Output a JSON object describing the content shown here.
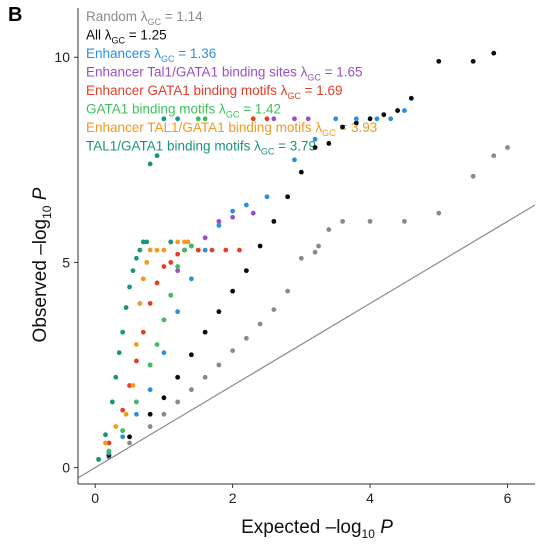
{
  "panel_label": "B",
  "chart_data": {
    "type": "scatter",
    "subtype": "qq-plot",
    "xlabel": "Expected –log10 P",
    "xlabel_parts": {
      "main": "Expected –log",
      "sub": "10",
      "italic": "P"
    },
    "ylabel": "Observed –log10 P",
    "ylabel_parts": {
      "main": "Observed –log",
      "sub": "10",
      "italic": "P"
    },
    "xlim": [
      -0.25,
      6.4
    ],
    "ylim": [
      -0.4,
      11.2
    ],
    "x_ticks": [
      0,
      2,
      4,
      6
    ],
    "y_ticks": [
      0,
      5,
      10
    ],
    "grid": false,
    "legend_placement": "top-left",
    "reference_line": {
      "from": [
        -0.25,
        -0.25
      ],
      "to": [
        6.4,
        6.4
      ],
      "color": "#8c8c8c"
    },
    "series": [
      {
        "name": "Random",
        "lambda": "1.14",
        "color": "#8a8a8a",
        "x": [
          0.2,
          0.5,
          0.8,
          1.0,
          1.2,
          1.4,
          1.6,
          1.8,
          2.0,
          2.2,
          2.4,
          2.6,
          2.8,
          3.0,
          3.2,
          3.25,
          3.4,
          3.6,
          4.0,
          4.5,
          5.0,
          5.5,
          5.8,
          6.0
        ],
        "y": [
          0.25,
          0.6,
          1.0,
          1.3,
          1.6,
          1.9,
          2.2,
          2.5,
          2.85,
          3.15,
          3.5,
          3.85,
          4.3,
          5.1,
          5.25,
          5.4,
          5.8,
          6.0,
          6.0,
          6.0,
          6.2,
          7.1,
          7.6,
          7.8
        ]
      },
      {
        "name": "All",
        "lambda": "1.25",
        "color": "#0a0a0a",
        "x": [
          0.2,
          0.5,
          0.8,
          1.0,
          1.2,
          1.4,
          1.6,
          1.8,
          2.0,
          2.2,
          2.4,
          2.6,
          2.8,
          3.0,
          3.2,
          3.4,
          3.6,
          3.8,
          4.0,
          4.2,
          4.4,
          4.6,
          5.0,
          5.5,
          5.8
        ],
        "y": [
          0.3,
          0.75,
          1.3,
          1.7,
          2.2,
          2.75,
          3.3,
          3.8,
          4.3,
          4.8,
          5.4,
          6.0,
          6.6,
          7.2,
          7.8,
          7.9,
          8.3,
          8.4,
          8.5,
          8.6,
          8.7,
          9.0,
          9.9,
          9.9,
          10.1
        ]
      },
      {
        "name": "Enhancers",
        "lambda": "1.36",
        "color": "#2e8fe0",
        "x": [
          0.2,
          0.4,
          0.6,
          0.8,
          1.0,
          1.2,
          1.4,
          1.6,
          1.8,
          2.0,
          2.2,
          2.5,
          2.9,
          3.2,
          3.5,
          3.8,
          4.1,
          4.3,
          4.5
        ],
        "y": [
          0.35,
          0.75,
          1.3,
          1.9,
          2.8,
          3.8,
          4.6,
          5.3,
          5.9,
          6.25,
          6.4,
          6.6,
          7.5,
          8.0,
          8.5,
          8.5,
          8.5,
          8.5,
          8.7
        ]
      },
      {
        "name": "Enhancer Tal1/GATA1 binding sites",
        "lambda": "1.65",
        "color": "#9b4fc4",
        "x": [
          0.2,
          0.4,
          0.6,
          0.8,
          1.0,
          1.1,
          1.2,
          1.3,
          1.4,
          1.6,
          1.8,
          2.0,
          2.3,
          2.6,
          2.9,
          3.1
        ],
        "y": [
          0.4,
          0.9,
          1.6,
          2.5,
          3.6,
          4.2,
          4.8,
          5.3,
          5.4,
          5.6,
          6.0,
          6.1,
          6.2,
          8.5,
          8.5,
          8.5
        ]
      },
      {
        "name": "Enhancer GATA1 binding motifs",
        "lambda": "1.69",
        "color": "#e0402a",
        "x": [
          0.2,
          0.4,
          0.5,
          0.6,
          0.7,
          0.8,
          0.9,
          1.0,
          1.1,
          1.2,
          1.3,
          1.5,
          1.7,
          1.9,
          2.1,
          2.3,
          2.5
        ],
        "y": [
          0.6,
          1.4,
          2.0,
          2.6,
          3.3,
          4.0,
          4.5,
          4.9,
          5.0,
          5.2,
          5.3,
          5.3,
          5.3,
          5.3,
          5.3,
          8.5,
          8.5
        ]
      },
      {
        "name": "GATA1 binding motifs",
        "lambda": "1.42",
        "color": "#3fbf5a",
        "x": [
          0.2,
          0.4,
          0.6,
          0.8,
          0.9,
          1.0,
          1.1,
          1.2,
          1.3,
          1.4,
          1.5,
          1.6
        ],
        "y": [
          0.4,
          0.9,
          1.6,
          2.5,
          3.0,
          3.6,
          4.2,
          4.9,
          5.3,
          5.4,
          8.5,
          8.5
        ]
      },
      {
        "name": "Enhancer TAL1/GATA1 binding motifs",
        "lambda": "3.93",
        "color": "#f19a1e",
        "x": [
          0.05,
          0.15,
          0.3,
          0.45,
          0.55,
          0.6,
          0.65,
          0.7,
          0.75,
          0.8,
          0.9,
          1.0,
          1.1,
          1.2,
          1.3,
          1.35
        ],
        "y": [
          0.2,
          0.6,
          1.0,
          1.3,
          2.0,
          3.0,
          4.0,
          4.6,
          5.0,
          5.3,
          5.3,
          5.3,
          5.5,
          5.5,
          5.5,
          5.5
        ]
      },
      {
        "name": "TAL1/GATA1 binding motifs",
        "lambda": "3.79",
        "color": "#17967a",
        "x": [
          0.05,
          0.15,
          0.25,
          0.3,
          0.35,
          0.4,
          0.45,
          0.5,
          0.55,
          0.6,
          0.65,
          0.7,
          0.75,
          0.8,
          0.9,
          1.0,
          1.1,
          1.2
        ],
        "y": [
          0.2,
          0.8,
          1.6,
          2.2,
          2.8,
          3.3,
          3.9,
          4.4,
          4.8,
          5.1,
          5.3,
          5.5,
          5.5,
          7.4,
          7.6,
          8.5,
          5.5,
          8.5
        ]
      }
    ]
  }
}
